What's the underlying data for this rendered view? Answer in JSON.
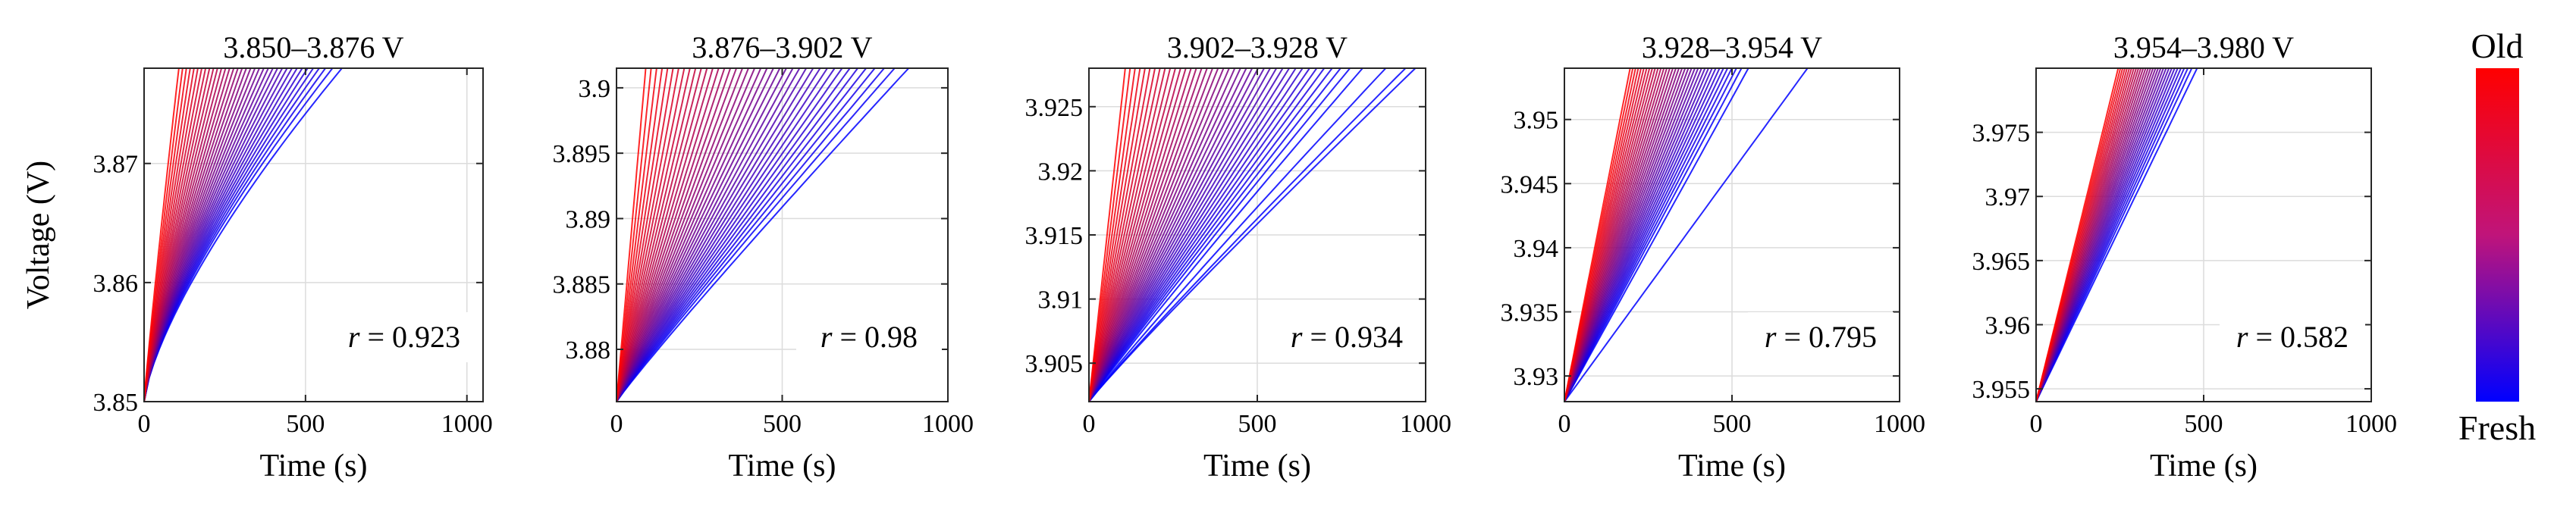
{
  "colorbar": {
    "top_label": "Old",
    "bottom_label": "Fresh",
    "colors": [
      "#ff0000",
      "#0000ff"
    ]
  },
  "chart_data": [
    {
      "type": "line",
      "title": "3.850–3.876 V",
      "xlabel": "Time (s)",
      "ylabel": "Voltage (V)",
      "xlim": [
        0,
        1050
      ],
      "ylim": [
        3.85,
        3.878
      ],
      "xticks": [
        0,
        500,
        1000
      ],
      "xtick_labels": [
        "0",
        "500",
        "1000"
      ],
      "yticks": [
        3.85,
        3.86,
        3.87
      ],
      "ytick_labels": [
        "3.85",
        "3.86",
        "3.87"
      ],
      "grid": true,
      "annotation": {
        "r_symbol": "r",
        "text": " = 0.923",
        "value": 0.923
      },
      "curves": {
        "count": 36,
        "end_time_min": 110,
        "end_time_max": 630,
        "exponent_fresh": 0.72,
        "exponent_old": 0.92
      }
    },
    {
      "type": "line",
      "title": "3.876–3.902 V",
      "xlabel": "Time (s)",
      "ylabel": "",
      "xlim": [
        0,
        1000
      ],
      "ylim": [
        3.876,
        3.9015
      ],
      "xticks": [
        0,
        500,
        1000
      ],
      "xtick_labels": [
        "0",
        "500",
        "1000"
      ],
      "yticks": [
        3.88,
        3.885,
        3.89,
        3.895,
        3.9
      ],
      "ytick_labels": [
        "3.88",
        "3.885",
        "3.89",
        "3.895",
        "3.9"
      ],
      "grid": true,
      "annotation": {
        "r_symbol": "r",
        "text": " = 0.98",
        "value": 0.98
      },
      "curves": {
        "count": 40,
        "end_time_min": 90,
        "end_time_max": 900,
        "exponent_fresh": 0.95,
        "exponent_old": 1.0
      }
    },
    {
      "type": "line",
      "title": "3.902–3.928 V",
      "xlabel": "Time (s)",
      "ylabel": "",
      "xlim": [
        0,
        1000
      ],
      "ylim": [
        3.902,
        3.928
      ],
      "xticks": [
        0,
        500,
        1000
      ],
      "xtick_labels": [
        "0",
        "500",
        "1000"
      ],
      "yticks": [
        3.905,
        3.91,
        3.915,
        3.92,
        3.925
      ],
      "ytick_labels": [
        "3.905",
        "3.91",
        "3.915",
        "3.92",
        "3.925"
      ],
      "grid": true,
      "annotation": {
        "r_symbol": "r",
        "text": " = 0.934",
        "value": 0.934
      },
      "curves": {
        "count": 40,
        "end_time_min": 110,
        "end_time_max": 830,
        "exponent_fresh": 0.95,
        "exponent_old": 1.0,
        "outlier_end_times": [
          900,
          960,
          990
        ]
      }
    },
    {
      "type": "line",
      "title": "3.928–3.954 V",
      "xlabel": "Time (s)",
      "ylabel": "",
      "xlim": [
        0,
        1000
      ],
      "ylim": [
        3.928,
        3.954
      ],
      "xticks": [
        0,
        500,
        1000
      ],
      "xtick_labels": [
        "0",
        "500",
        "1000"
      ],
      "yticks": [
        3.93,
        3.935,
        3.94,
        3.945,
        3.95
      ],
      "ytick_labels": [
        "3.93",
        "3.935",
        "3.94",
        "3.945",
        "3.95"
      ],
      "grid": true,
      "annotation": {
        "r_symbol": "r",
        "text": " = 0.795",
        "value": 0.795
      },
      "curves": {
        "count": 36,
        "end_time_min": 200,
        "end_time_max": 560,
        "exponent_fresh": 1.0,
        "exponent_old": 1.0,
        "outlier_end_times": [
          740
        ]
      }
    },
    {
      "type": "line",
      "title": "3.954–3.980 V",
      "xlabel": "Time (s)",
      "ylabel": "",
      "xlim": [
        0,
        1000
      ],
      "ylim": [
        3.954,
        3.98
      ],
      "xticks": [
        0,
        500,
        1000
      ],
      "xtick_labels": [
        "0",
        "500",
        "1000"
      ],
      "yticks": [
        3.955,
        3.96,
        3.965,
        3.97,
        3.975
      ],
      "ytick_labels": [
        "3.955",
        "3.96",
        "3.965",
        "3.97",
        "3.975"
      ],
      "grid": true,
      "annotation": {
        "r_symbol": "r",
        "text": " = 0.582",
        "value": 0.582
      },
      "curves": {
        "count": 30,
        "end_time_min": 250,
        "end_time_max": 490,
        "exponent_fresh": 1.0,
        "exponent_old": 1.0
      }
    }
  ]
}
